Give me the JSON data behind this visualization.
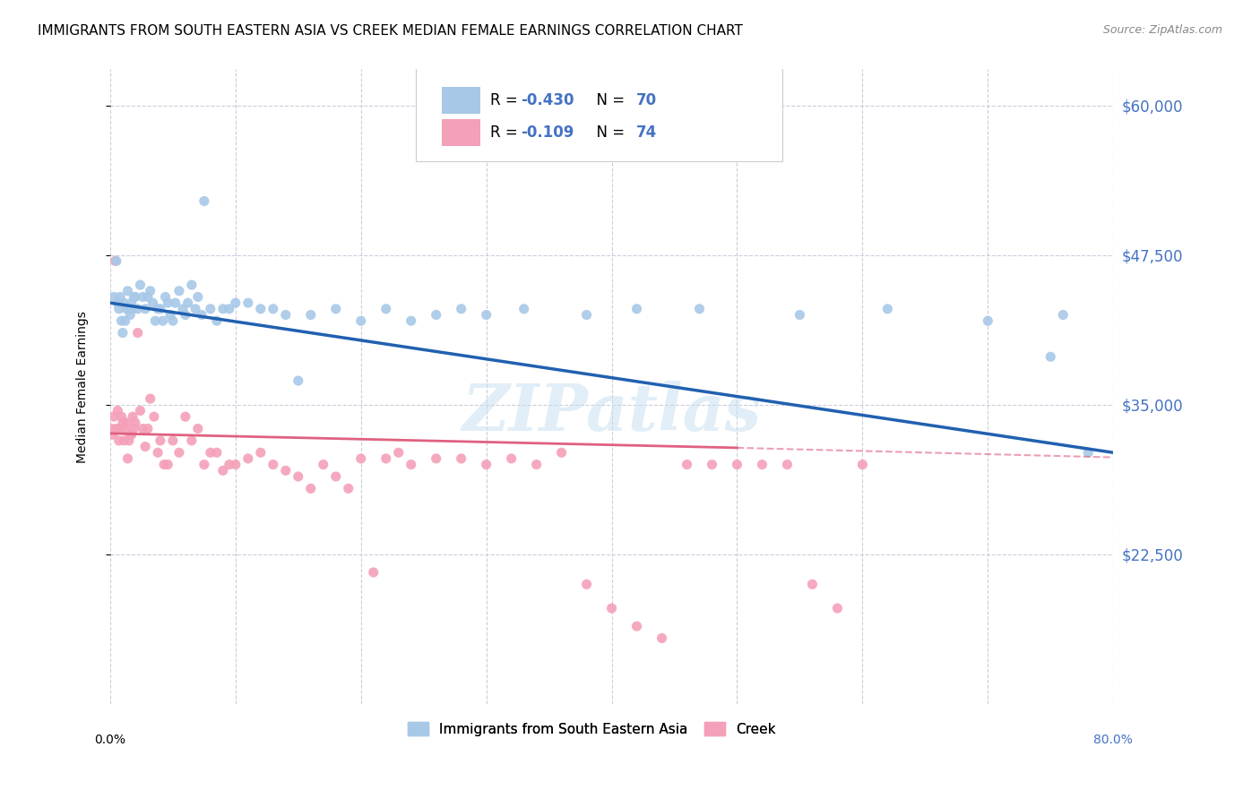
{
  "title": "IMMIGRANTS FROM SOUTH EASTERN ASIA VS CREEK MEDIAN FEMALE EARNINGS CORRELATION CHART",
  "source": "Source: ZipAtlas.com",
  "ylabel": "Median Female Earnings",
  "yticks": [
    22500,
    35000,
    47500,
    60000
  ],
  "ytick_labels": [
    "$22,500",
    "$35,000",
    "$47,500",
    "$60,000"
  ],
  "xlim": [
    0.0,
    0.8
  ],
  "ylim": [
    10000,
    63000
  ],
  "legend_text_color": "#4472c4",
  "series1": {
    "label": "Immigrants from South Eastern Asia",
    "R_str": "-0.430",
    "N_str": "70",
    "color": "#a8c8e8",
    "line_color": "#2060b0",
    "x": [
      0.003,
      0.005,
      0.006,
      0.007,
      0.008,
      0.009,
      0.01,
      0.011,
      0.012,
      0.013,
      0.014,
      0.015,
      0.016,
      0.017,
      0.018,
      0.019,
      0.02,
      0.022,
      0.024,
      0.026,
      0.028,
      0.03,
      0.032,
      0.034,
      0.036,
      0.038,
      0.04,
      0.042,
      0.044,
      0.046,
      0.048,
      0.05,
      0.052,
      0.055,
      0.058,
      0.06,
      0.062,
      0.065,
      0.068,
      0.07,
      0.073,
      0.075,
      0.08,
      0.085,
      0.09,
      0.095,
      0.1,
      0.11,
      0.12,
      0.13,
      0.14,
      0.15,
      0.16,
      0.18,
      0.2,
      0.22,
      0.24,
      0.26,
      0.28,
      0.3,
      0.33,
      0.38,
      0.42,
      0.47,
      0.55,
      0.62,
      0.7,
      0.75,
      0.76,
      0.78
    ],
    "y": [
      44000,
      47000,
      43500,
      43000,
      44000,
      42000,
      41000,
      43500,
      42000,
      43000,
      44500,
      43000,
      42500,
      43500,
      43000,
      44000,
      44000,
      43000,
      45000,
      44000,
      43000,
      44000,
      44500,
      43500,
      42000,
      43000,
      43000,
      42000,
      44000,
      43500,
      42500,
      42000,
      43500,
      44500,
      43000,
      42500,
      43500,
      45000,
      43000,
      44000,
      42500,
      52000,
      43000,
      42000,
      43000,
      43000,
      43500,
      43500,
      43000,
      43000,
      42500,
      37000,
      42500,
      43000,
      42000,
      43000,
      42000,
      42500,
      43000,
      42500,
      43000,
      42500,
      43000,
      43000,
      42500,
      43000,
      42000,
      39000,
      42500,
      31000
    ]
  },
  "series2": {
    "label": "Creek",
    "R_str": "-0.109",
    "N_str": "74",
    "color": "#f4a0b8",
    "line_color": "#e06080",
    "x": [
      0.001,
      0.002,
      0.003,
      0.004,
      0.005,
      0.006,
      0.007,
      0.008,
      0.009,
      0.01,
      0.011,
      0.012,
      0.013,
      0.014,
      0.015,
      0.016,
      0.017,
      0.018,
      0.019,
      0.02,
      0.022,
      0.024,
      0.026,
      0.028,
      0.03,
      0.032,
      0.035,
      0.038,
      0.04,
      0.043,
      0.046,
      0.05,
      0.055,
      0.06,
      0.065,
      0.07,
      0.075,
      0.08,
      0.085,
      0.09,
      0.095,
      0.1,
      0.11,
      0.12,
      0.13,
      0.14,
      0.15,
      0.16,
      0.17,
      0.18,
      0.19,
      0.2,
      0.21,
      0.22,
      0.23,
      0.24,
      0.26,
      0.28,
      0.3,
      0.32,
      0.34,
      0.36,
      0.38,
      0.4,
      0.42,
      0.44,
      0.46,
      0.48,
      0.5,
      0.52,
      0.54,
      0.56,
      0.58,
      0.6
    ],
    "y": [
      33000,
      32500,
      34000,
      47000,
      33000,
      34500,
      32000,
      33000,
      34000,
      33500,
      32000,
      33000,
      33500,
      30500,
      32000,
      32500,
      32500,
      34000,
      33000,
      33500,
      41000,
      34500,
      33000,
      31500,
      33000,
      35500,
      34000,
      31000,
      32000,
      30000,
      30000,
      32000,
      31000,
      34000,
      32000,
      33000,
      30000,
      31000,
      31000,
      29500,
      30000,
      30000,
      30500,
      31000,
      30000,
      29500,
      29000,
      28000,
      30000,
      29000,
      28000,
      30500,
      21000,
      30500,
      31000,
      30000,
      30500,
      30500,
      30000,
      30500,
      30000,
      31000,
      20000,
      18000,
      16500,
      15500,
      30000,
      30000,
      30000,
      30000,
      30000,
      20000,
      18000,
      30000
    ]
  },
  "watermark": "ZIPatlas",
  "background_color": "#ffffff",
  "grid_color": "#ccccdd"
}
